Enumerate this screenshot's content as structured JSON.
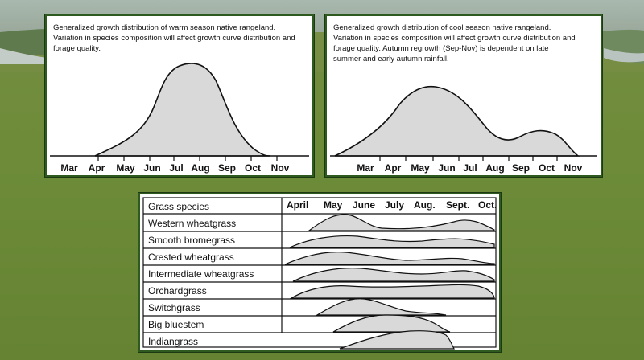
{
  "warm_panel": {
    "caption_lines": [
      "Generalized growth distribution of warm season native rangeland.",
      "Variation in species composition will affect growth curve distribution and",
      "forage quality."
    ],
    "months": [
      "Mar",
      "Apr",
      "May",
      "Jun",
      "Jul",
      "Aug",
      "Sep",
      "Oct",
      "Nov"
    ]
  },
  "cool_panel": {
    "caption_lines": [
      "Generalized growth distribution of cool season native rangeland.",
      "Variation in species composition will affect growth curve distribution and",
      "forage quality. Autumn regrowth (Sep-Nov) is dependent on late",
      "summer and early autumn rainfall."
    ],
    "months": [
      "Mar",
      "Apr",
      "May",
      "Jun",
      "Jul",
      "Aug",
      "Sep",
      "Oct",
      "Nov"
    ]
  },
  "species_table": {
    "header": "Grass species",
    "months": [
      "April",
      "May",
      "June",
      "July",
      "Aug.",
      "Sept.",
      "Oct."
    ],
    "rows": [
      "Western wheatgrass",
      "Smooth bromegrass",
      "Crested wheatgrass",
      "Intermediate wheatgrass",
      "Orchardgrass",
      "Switchgrass",
      "Big bluestem",
      "Indiangrass"
    ]
  },
  "colors": {
    "panel_border": "#2f5a1f",
    "curve_fill": "#d9d9d9",
    "sky": "#9fb0a6",
    "grass": "#6f8a3c"
  }
}
